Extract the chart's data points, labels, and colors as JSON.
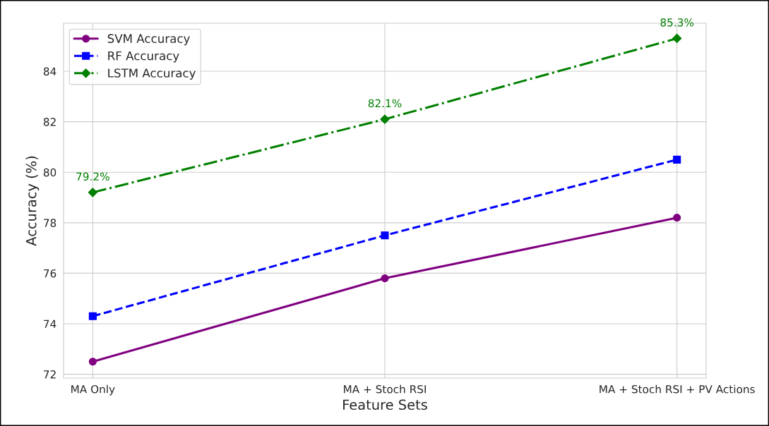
{
  "chart_data": {
    "type": "line",
    "xlabel": "Feature Sets",
    "ylabel": "Accuracy (%)",
    "categories": [
      "MA Only",
      "MA + Stoch RSI",
      "MA + Stoch RSI + PV Actions"
    ],
    "series": [
      {
        "name": "SVM Accuracy",
        "color": "#800080",
        "values": [
          72.5,
          75.8,
          78.2
        ],
        "marker": "circle",
        "line_style": "solid"
      },
      {
        "name": "RF Accuracy",
        "color": "#0000ff",
        "values": [
          74.3,
          77.5,
          80.5
        ],
        "marker": "square",
        "line_style": "dashed"
      },
      {
        "name": "LSTM Accuracy",
        "color": "#008000",
        "values": [
          79.2,
          82.1,
          85.3
        ],
        "marker": "diamond",
        "line_style": "dashdot",
        "value_labels": [
          "79.2%",
          "82.1%",
          "85.3%"
        ]
      }
    ],
    "ylim": [
      71.85,
      85.9
    ],
    "yticks": [
      72,
      74,
      76,
      78,
      80,
      82,
      84
    ],
    "grid": true,
    "legend": "top left"
  }
}
